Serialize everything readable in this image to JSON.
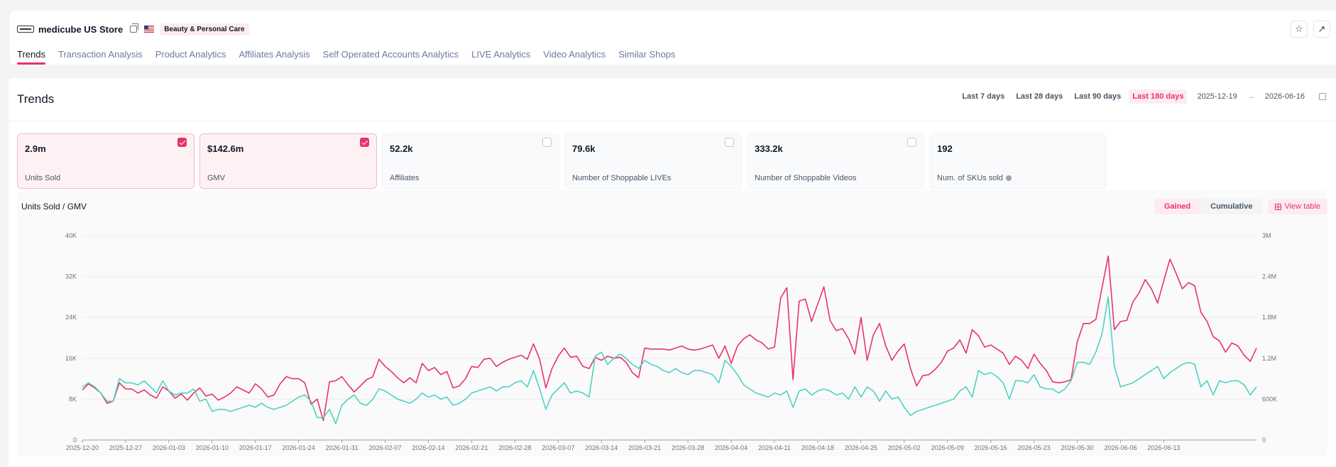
{
  "header": {
    "store_name": "medicube US Store",
    "category": "Beauty & Personal Care",
    "tabs": [
      {
        "label": "Trends"
      },
      {
        "label": "Transaction Analysis"
      },
      {
        "label": "Product Analytics"
      },
      {
        "label": "Affiliates Analysis"
      },
      {
        "label": "Self Operated Accounts Analytics"
      },
      {
        "label": "LIVE Analytics"
      },
      {
        "label": "Video Analytics"
      },
      {
        "label": "Similar Shops"
      }
    ],
    "icons": [
      "star-icon",
      "external-link-icon"
    ]
  },
  "trends": {
    "title": "Trends",
    "ranges": [
      {
        "label": "Last 7 days"
      },
      {
        "label": "Last 28 days"
      },
      {
        "label": "Last 90 days"
      },
      {
        "label": "Last 180 days"
      }
    ],
    "active_range": "Last 180 days",
    "date_from": "2025-12-19",
    "date_to": "2026-06-16"
  },
  "cards": [
    {
      "value": "2.9m",
      "label": "Units Sold",
      "checked": true
    },
    {
      "value": "$142.6m",
      "label": "GMV",
      "checked": true
    },
    {
      "value": "52.2k",
      "label": "Affiliates",
      "checked": false
    },
    {
      "value": "79.6k",
      "label": "Number of Shoppable LIVEs",
      "checked": false
    },
    {
      "value": "333.2k",
      "label": "Number of Shoppable Videos",
      "checked": false
    },
    {
      "value": "192",
      "label": "Num. of SKUs sold",
      "checked": null
    }
  ],
  "chart_panel": {
    "title": "Units Sold / GMV",
    "mode_gained": "Gained",
    "mode_cumulative": "Cumulative",
    "view_table": "View table"
  },
  "colors": {
    "accent": "#e8336a",
    "units": "#e8336a",
    "gmv": "#4fd1c5"
  },
  "chart_data": {
    "type": "line",
    "x_start": "2025-12-20",
    "x_end": "2026-06-16",
    "xticks": [
      "2025-12-20",
      "2025-12-27",
      "2026-01-03",
      "2026-01-10",
      "2026-01-17",
      "2026-01-24",
      "2026-01-31",
      "2026-02-07",
      "2026-02-14",
      "2026-02-21",
      "2026-02-28",
      "2026-03-07",
      "2026-03-14",
      "2026-03-21",
      "2026-03-28",
      "2026-04-04",
      "2026-04-11",
      "2026-04-18",
      "2026-04-25",
      "2026-05-02",
      "2026-05-09",
      "2026-05-16",
      "2026-05-23",
      "2026-05-30",
      "2026-06-06",
      "2026-06-13"
    ],
    "y_left": {
      "ticks": [
        "0",
        "8K",
        "16K",
        "24K",
        "32K",
        "40K"
      ],
      "range": [
        0,
        40000
      ]
    },
    "y_right": {
      "ticks": [
        "0",
        "600K",
        "1.2M",
        "1.8M",
        "2.4M",
        "3M"
      ],
      "range": [
        0,
        3000000
      ]
    },
    "series": [
      {
        "key": "units",
        "color": "#e8336a",
        "axis": "left",
        "values": [
          9800,
          11000,
          10200,
          9200,
          7200,
          7600,
          11200,
          10000,
          10000,
          9200,
          9800,
          8800,
          8200,
          10400,
          9600,
          8200,
          9000,
          7800,
          9200,
          10200,
          8600,
          9000,
          7800,
          8400,
          9200,
          10400,
          9800,
          9200,
          11000,
          10000,
          8400,
          8800,
          11000,
          12400,
          12000,
          12000,
          11200,
          7000,
          8000,
          3800,
          11400,
          11600,
          12400,
          10800,
          9400,
          10600,
          11800,
          12400,
          15800,
          14400,
          13400,
          12200,
          11200,
          12200,
          11200,
          15000,
          13600,
          14200,
          12800,
          13400,
          10200,
          10600,
          12000,
          14400,
          14200,
          15800,
          16000,
          14400,
          15200,
          15800,
          16200,
          16600,
          15800,
          18800,
          15800,
          10200,
          14000,
          16400,
          18000,
          16200,
          16400,
          14400,
          14000,
          16200,
          15600,
          16400,
          16000,
          16200,
          15200,
          13200,
          12200,
          18000,
          17800,
          17800,
          17800,
          17600,
          18000,
          18400,
          17800,
          17600,
          17800,
          18200,
          18600,
          16000,
          18400,
          15000,
          18400,
          19800,
          20600,
          19600,
          19000,
          17800,
          18200,
          27800,
          29800,
          11800,
          27200,
          27600,
          23200,
          26600,
          30000,
          23400,
          21400,
          21800,
          19800,
          16800,
          24000,
          15600,
          20600,
          22800,
          18400,
          15600,
          17400,
          18800,
          14000,
          10600,
          12600,
          12800,
          13800,
          15200,
          17400,
          18000,
          19600,
          17000,
          21600,
          20400,
          18200,
          18600,
          17800,
          17000,
          14800,
          16400,
          15600,
          14000,
          16800,
          15000,
          13600,
          11400,
          11200,
          11400,
          11800,
          19200,
          22800,
          22800,
          23600,
          29800,
          36000,
          21600,
          23200,
          23400,
          27000,
          28800,
          31400,
          29600,
          26800,
          31200,
          35400,
          32600,
          29600,
          30800,
          30200,
          25000,
          23200,
          20200,
          19400,
          17200,
          19000,
          18400,
          16600,
          15400,
          18000
        ]
      },
      {
        "key": "gmv",
        "color": "#4fd1c5",
        "axis": "right",
        "values": [
          780000,
          840000,
          780000,
          690000,
          570000,
          570000,
          900000,
          840000,
          840000,
          810000,
          870000,
          780000,
          690000,
          870000,
          720000,
          660000,
          690000,
          690000,
          750000,
          570000,
          600000,
          420000,
          450000,
          450000,
          420000,
          450000,
          480000,
          510000,
          480000,
          540000,
          480000,
          450000,
          480000,
          510000,
          570000,
          630000,
          660000,
          570000,
          330000,
          330000,
          450000,
          240000,
          510000,
          600000,
          660000,
          540000,
          510000,
          600000,
          750000,
          720000,
          660000,
          600000,
          570000,
          540000,
          600000,
          690000,
          630000,
          660000,
          600000,
          630000,
          510000,
          540000,
          600000,
          690000,
          720000,
          750000,
          780000,
          720000,
          780000,
          780000,
          840000,
          870000,
          780000,
          1020000,
          750000,
          450000,
          660000,
          750000,
          840000,
          690000,
          720000,
          690000,
          630000,
          1230000,
          1290000,
          1110000,
          1200000,
          1260000,
          1200000,
          1110000,
          1050000,
          1170000,
          1110000,
          1080000,
          1020000,
          990000,
          1050000,
          990000,
          960000,
          1020000,
          1020000,
          990000,
          960000,
          840000,
          1170000,
          1080000,
          960000,
          810000,
          750000,
          690000,
          660000,
          630000,
          690000,
          660000,
          720000,
          480000,
          720000,
          750000,
          660000,
          720000,
          750000,
          720000,
          660000,
          690000,
          600000,
          780000,
          630000,
          780000,
          720000,
          570000,
          720000,
          600000,
          630000,
          480000,
          360000,
          420000,
          450000,
          480000,
          510000,
          540000,
          570000,
          600000,
          720000,
          780000,
          630000,
          1020000,
          960000,
          990000,
          930000,
          840000,
          600000,
          870000,
          870000,
          840000,
          960000,
          780000,
          750000,
          750000,
          690000,
          750000,
          870000,
          1140000,
          1140000,
          1110000,
          1290000,
          1560000,
          2100000,
          1080000,
          780000,
          810000,
          840000,
          900000,
          960000,
          1020000,
          1080000,
          900000,
          990000,
          1050000,
          1110000,
          1140000,
          1110000,
          780000,
          870000,
          660000,
          870000,
          840000,
          870000,
          870000,
          810000,
          660000,
          780000
        ]
      }
    ]
  }
}
